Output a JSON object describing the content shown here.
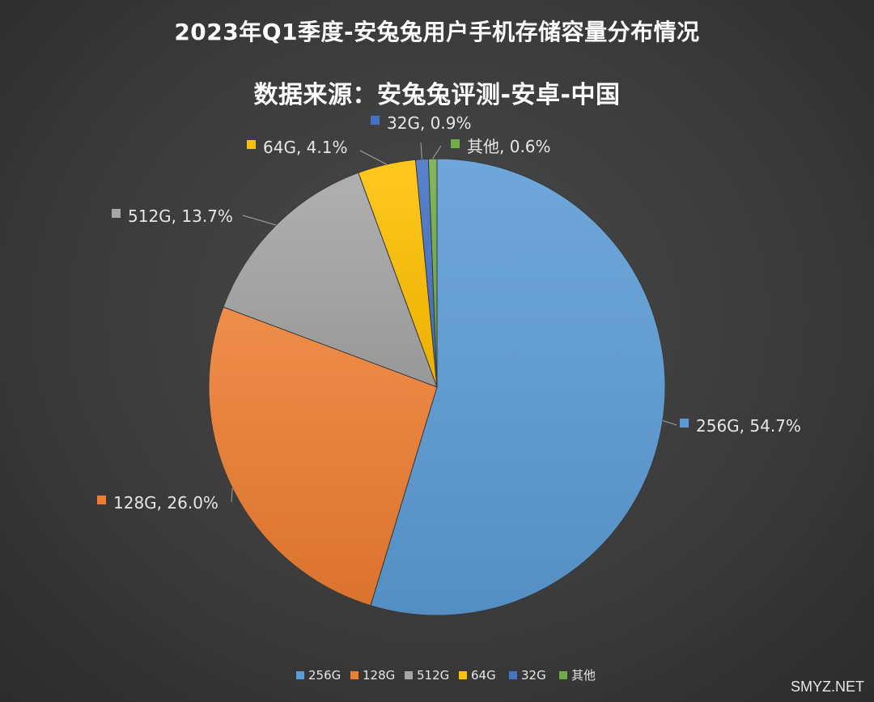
{
  "chart_data": {
    "type": "pie",
    "title": "2023年Q1季度-安兔兔用户手机存储容量分布情况",
    "subtitle": "数据来源：安兔兔评测-安卓-中国",
    "categories": [
      "256G",
      "128G",
      "512G",
      "64G",
      "32G",
      "其他"
    ],
    "values": [
      54.7,
      26.0,
      13.7,
      4.1,
      0.9,
      0.6
    ],
    "unit": "%",
    "data_labels": [
      "256G, 54.7%",
      "128G, 26.0%",
      "512G, 13.7%",
      "64G, 4.1%",
      "32G, 0.9%",
      "其他, 0.6%"
    ],
    "colors": [
      "#5b9bd5",
      "#ed7d31",
      "#a5a5a5",
      "#ffc000",
      "#4472c4",
      "#70ad47"
    ],
    "legend_position": "bottom",
    "start_angle": "12 o'clock",
    "direction": "clockwise"
  },
  "watermark": "SMYZ.NET"
}
